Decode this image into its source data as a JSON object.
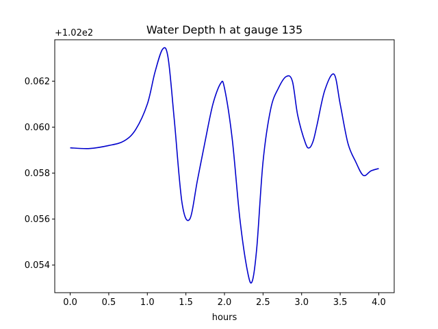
{
  "chart_data": {
    "type": "line",
    "title": "Water Depth h at gauge 135",
    "xlabel": "hours",
    "ylabel": "",
    "y_offset_label": "+1.02e2",
    "xlim": [
      -0.2,
      4.2
    ],
    "ylim": [
      0.0528,
      0.0638
    ],
    "x_ticks": [
      0.0,
      0.5,
      1.0,
      1.5,
      2.0,
      2.5,
      3.0,
      3.5,
      4.0
    ],
    "x_tick_labels": [
      "0.0",
      "0.5",
      "1.0",
      "1.5",
      "2.0",
      "2.5",
      "3.0",
      "3.5",
      "4.0"
    ],
    "y_ticks": [
      0.054,
      0.056,
      0.058,
      0.06,
      0.062
    ],
    "y_tick_labels": [
      "0.054",
      "0.056",
      "0.058",
      "0.060",
      "0.062"
    ],
    "grid": false,
    "series": [
      {
        "color": "#0000cc",
        "x": [
          0.0,
          0.25,
          0.5,
          0.7,
          0.85,
          1.0,
          1.1,
          1.2,
          1.27,
          1.35,
          1.45,
          1.55,
          1.65,
          1.75,
          1.85,
          1.95,
          2.0,
          2.1,
          2.2,
          2.3,
          2.36,
          2.42,
          2.5,
          2.6,
          2.7,
          2.8,
          2.88,
          2.95,
          3.05,
          3.1,
          3.15,
          3.2,
          3.3,
          3.42,
          3.5,
          3.6,
          3.7,
          3.8,
          3.9,
          4.0
        ],
        "y": [
          0.0591,
          0.05907,
          0.0592,
          0.0594,
          0.0599,
          0.061,
          0.0624,
          0.0634,
          0.063,
          0.0603,
          0.0567,
          0.056,
          0.0577,
          0.0594,
          0.061,
          0.0619,
          0.0617,
          0.0595,
          0.056,
          0.0537,
          0.0533,
          0.0548,
          0.0585,
          0.0608,
          0.0617,
          0.0622,
          0.062,
          0.0605,
          0.0593,
          0.0591,
          0.0594,
          0.0601,
          0.0616,
          0.0623,
          0.061,
          0.0593,
          0.0585,
          0.0579,
          0.0581,
          0.0582
        ]
      }
    ]
  }
}
